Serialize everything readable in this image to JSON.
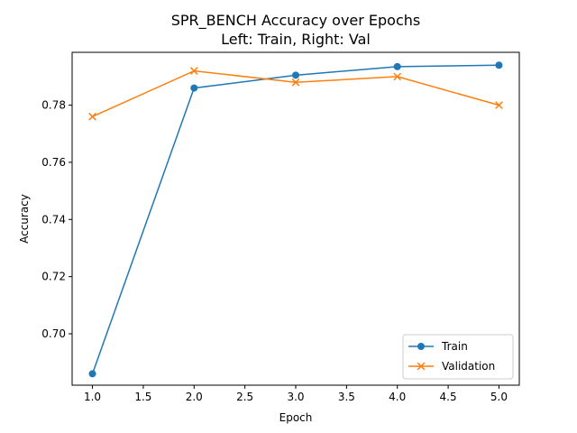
{
  "chart_data": {
    "type": "line",
    "title": "SPR_BENCH Accuracy over Epochs",
    "subtitle": "Left: Train, Right: Val",
    "xlabel": "Epoch",
    "ylabel": "Accuracy",
    "xlim": [
      0.8,
      5.2
    ],
    "ylim": [
      0.682,
      0.7985
    ],
    "xticks": [
      1.0,
      1.5,
      2.0,
      2.5,
      3.0,
      3.5,
      4.0,
      4.5,
      5.0
    ],
    "xtick_labels": [
      "1.0",
      "1.5",
      "2.0",
      "2.5",
      "3.0",
      "3.5",
      "4.0",
      "4.5",
      "5.0"
    ],
    "yticks": [
      0.7,
      0.72,
      0.74,
      0.76,
      0.78
    ],
    "ytick_labels": [
      "0.70",
      "0.72",
      "0.74",
      "0.76",
      "0.78"
    ],
    "grid": false,
    "legend_position": "lower-right",
    "x": [
      1,
      2,
      3,
      4,
      5
    ],
    "series": [
      {
        "name": "Train",
        "values": [
          0.686,
          0.786,
          0.7905,
          0.7935,
          0.794
        ],
        "color": "#1f77b4",
        "marker": "circle"
      },
      {
        "name": "Validation",
        "values": [
          0.776,
          0.792,
          0.788,
          0.79,
          0.78
        ],
        "color": "#ff7f0e",
        "marker": "x"
      }
    ]
  }
}
